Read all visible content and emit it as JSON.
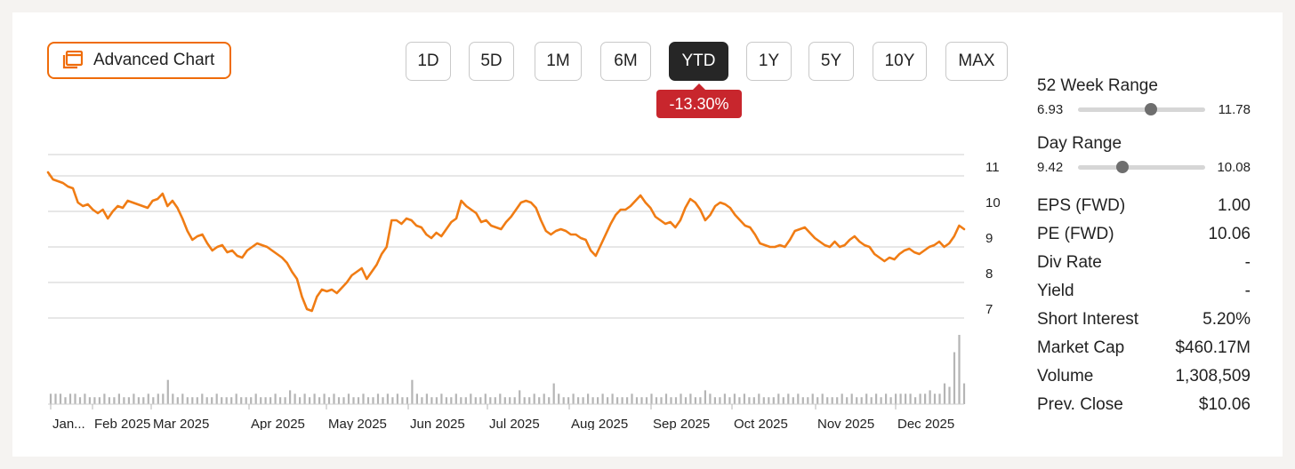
{
  "toolbar": {
    "advanced_chart_label": "Advanced Chart",
    "ranges": [
      "1D",
      "5D",
      "1M",
      "6M",
      "YTD",
      "1Y",
      "5Y",
      "10Y",
      "MAX"
    ],
    "active_range": "YTD",
    "change_label": "-13.30%"
  },
  "colors": {
    "accent": "#ef6c0a",
    "line": "#f07c14",
    "negative": "#c8262d",
    "volume": "#b5b5b5",
    "grid": "#cfcfcf"
  },
  "stats": {
    "week52": {
      "title": "52 Week Range",
      "low": "6.93",
      "high": "11.78",
      "position": 0.57
    },
    "day": {
      "title": "Day Range",
      "low": "9.42",
      "high": "10.08",
      "position": 0.35
    },
    "rows": [
      {
        "label": "EPS (FWD)",
        "value": "1.00"
      },
      {
        "label": "PE (FWD)",
        "value": "10.06"
      },
      {
        "label": "Div Rate",
        "value": "-"
      },
      {
        "label": "Yield",
        "value": "-"
      },
      {
        "label": "Short Interest",
        "value": "5.20%"
      },
      {
        "label": "Market Cap",
        "value": "$460.17M"
      },
      {
        "label": "Volume",
        "value": "1,308,509"
      },
      {
        "label": "Prev. Close",
        "value": "$10.06"
      }
    ]
  },
  "chart_data": {
    "type": "line",
    "title": "",
    "xlabel": "",
    "ylabel": "",
    "ylim": [
      6.7,
      11.6
    ],
    "yticks": [
      7,
      8,
      9,
      10,
      11
    ],
    "grid": true,
    "x_labels": [
      "Jan...",
      "Feb 2025",
      "Mar 2025",
      "Apr 2025",
      "May 2025",
      "Jun 2025",
      "Jul 2025",
      "Aug 2025",
      "Sep 2025",
      "Oct 2025",
      "Nov 2025",
      "Dec 2025"
    ],
    "series": [
      {
        "values": [
          11.1,
          10.9,
          10.85,
          10.8,
          10.7,
          10.65,
          10.25,
          10.15,
          10.2,
          10.05,
          9.95,
          10.05,
          9.8,
          10.0,
          10.15,
          10.1,
          10.3,
          10.25,
          10.2,
          10.15,
          10.1,
          10.3,
          10.35,
          10.5,
          10.15,
          10.3,
          10.1,
          9.8,
          9.45,
          9.2,
          9.3,
          9.35,
          9.1,
          8.9,
          9.0,
          9.05,
          8.85,
          8.9,
          8.75,
          8.7,
          8.9,
          9.0,
          9.1,
          9.05,
          9.0,
          8.9,
          8.8,
          8.7,
          8.55,
          8.3,
          8.1,
          7.6,
          7.25,
          7.2,
          7.6,
          7.8,
          7.75,
          7.8,
          7.7,
          7.85,
          8.0,
          8.2,
          8.3,
          8.4,
          8.1,
          8.3,
          8.5,
          8.8,
          9.0,
          9.75,
          9.75,
          9.65,
          9.8,
          9.75,
          9.6,
          9.55,
          9.35,
          9.25,
          9.4,
          9.3,
          9.5,
          9.7,
          9.8,
          10.3,
          10.15,
          10.05,
          9.95,
          9.7,
          9.75,
          9.6,
          9.55,
          9.5,
          9.7,
          9.85,
          10.05,
          10.25,
          10.3,
          10.25,
          10.1,
          9.75,
          9.45,
          9.35,
          9.45,
          9.5,
          9.45,
          9.35,
          9.35,
          9.25,
          9.2,
          8.9,
          8.75,
          9.05,
          9.35,
          9.65,
          9.9,
          10.05,
          10.05,
          10.15,
          10.3,
          10.45,
          10.25,
          10.1,
          9.85,
          9.75,
          9.65,
          9.7,
          9.55,
          9.75,
          10.1,
          10.35,
          10.25,
          10.05,
          9.75,
          9.9,
          10.15,
          10.25,
          10.2,
          10.1,
          9.9,
          9.75,
          9.6,
          9.55,
          9.35,
          9.1,
          9.05,
          9.0,
          9.0,
          9.05,
          9.0,
          9.2,
          9.45,
          9.5,
          9.55,
          9.4,
          9.25,
          9.15,
          9.05,
          9.0,
          9.15,
          9.0,
          9.05,
          9.2,
          9.3,
          9.15,
          9.05,
          9.0,
          8.8,
          8.7,
          8.6,
          8.7,
          8.65,
          8.8,
          8.9,
          8.95,
          8.85,
          8.8,
          8.9,
          9.0,
          9.05,
          9.15,
          9.0,
          9.1,
          9.3,
          9.6,
          9.5
        ]
      }
    ],
    "volume": [
      3,
      3,
      3,
      2,
      3,
      3,
      2,
      3,
      2,
      2,
      2,
      3,
      2,
      2,
      3,
      2,
      2,
      3,
      2,
      2,
      3,
      2,
      3,
      3,
      7,
      3,
      2,
      3,
      2,
      2,
      2,
      3,
      2,
      2,
      3,
      2,
      2,
      2,
      3,
      2,
      2,
      2,
      3,
      2,
      2,
      2,
      3,
      2,
      2,
      4,
      3,
      2,
      3,
      2,
      3,
      2,
      3,
      2,
      3,
      2,
      2,
      3,
      2,
      2,
      3,
      2,
      2,
      3,
      2,
      3,
      2,
      3,
      2,
      2,
      7,
      3,
      2,
      3,
      2,
      2,
      3,
      2,
      2,
      3,
      2,
      2,
      3,
      2,
      2,
      3,
      2,
      2,
      3,
      2,
      2,
      2,
      4,
      2,
      2,
      3,
      2,
      3,
      2,
      6,
      3,
      2,
      2,
      3,
      2,
      2,
      3,
      2,
      2,
      3,
      2,
      3,
      2,
      2,
      2,
      3,
      2,
      2,
      2,
      3,
      2,
      2,
      3,
      2,
      2,
      3,
      2,
      3,
      2,
      2,
      4,
      3,
      2,
      2,
      3,
      2,
      3,
      2,
      3,
      2,
      2,
      3,
      2,
      2,
      2,
      3,
      2,
      3,
      2,
      3,
      2,
      2,
      3,
      2,
      3,
      2,
      2,
      2,
      3,
      2,
      3,
      2,
      2,
      3,
      2,
      3,
      2,
      3,
      2,
      3,
      3,
      3,
      3,
      2,
      3,
      3,
      4,
      3,
      3,
      6,
      5,
      15,
      20,
      6
    ]
  }
}
